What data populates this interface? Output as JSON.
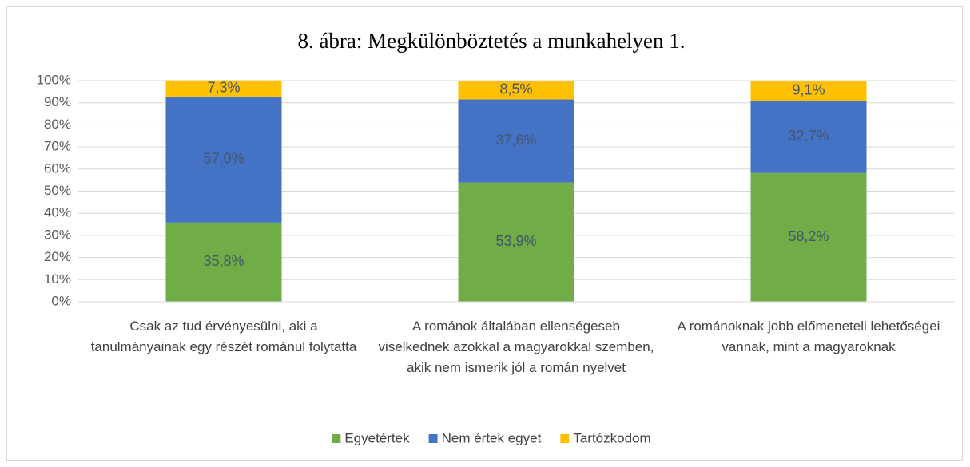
{
  "chart_data": {
    "type": "stacked_bar",
    "title": "8. ábra: Megkülönböztetés a munkahelyen 1.",
    "categories": [
      "Csak az tud érvényesülni, aki a tanulmányainak egy részét románul folytatta",
      "A románok általában ellenségeseb viselkednek azokkal a magyarokkal szemben, akik nem ismerik jól a román nyelvet",
      "A románoknak jobb előmeneteli lehetőségei vannak, mint a magyaroknak"
    ],
    "series": [
      {
        "name": "Egyetértek",
        "color": "#70ad47",
        "values": [
          35.8,
          53.9,
          58.2
        ],
        "value_labels": [
          "35,8%",
          "53,9%",
          "58,2%"
        ]
      },
      {
        "name": "Nem értek egyet",
        "color": "#4472c4",
        "values": [
          57.0,
          37.6,
          32.7
        ],
        "value_labels": [
          "57,0%",
          "37,6%",
          "32,7%"
        ]
      },
      {
        "name": "Tartózkodom",
        "color": "#ffc000",
        "values": [
          7.3,
          8.5,
          9.1
        ],
        "value_labels": [
          "7,3%",
          "8,5%",
          "9,1%"
        ]
      }
    ],
    "ylim": [
      0,
      100
    ],
    "yticks": [
      {
        "value": 0,
        "label": "0%"
      },
      {
        "value": 10,
        "label": "10%"
      },
      {
        "value": 20,
        "label": "20%"
      },
      {
        "value": 30,
        "label": "30%"
      },
      {
        "value": 40,
        "label": "40%"
      },
      {
        "value": 50,
        "label": "50%"
      },
      {
        "value": 60,
        "label": "60%"
      },
      {
        "value": 70,
        "label": "70%"
      },
      {
        "value": 80,
        "label": "80%"
      },
      {
        "value": 90,
        "label": "90%"
      },
      {
        "value": 100,
        "label": "100%"
      }
    ],
    "grid": true,
    "legend": "bottom"
  }
}
